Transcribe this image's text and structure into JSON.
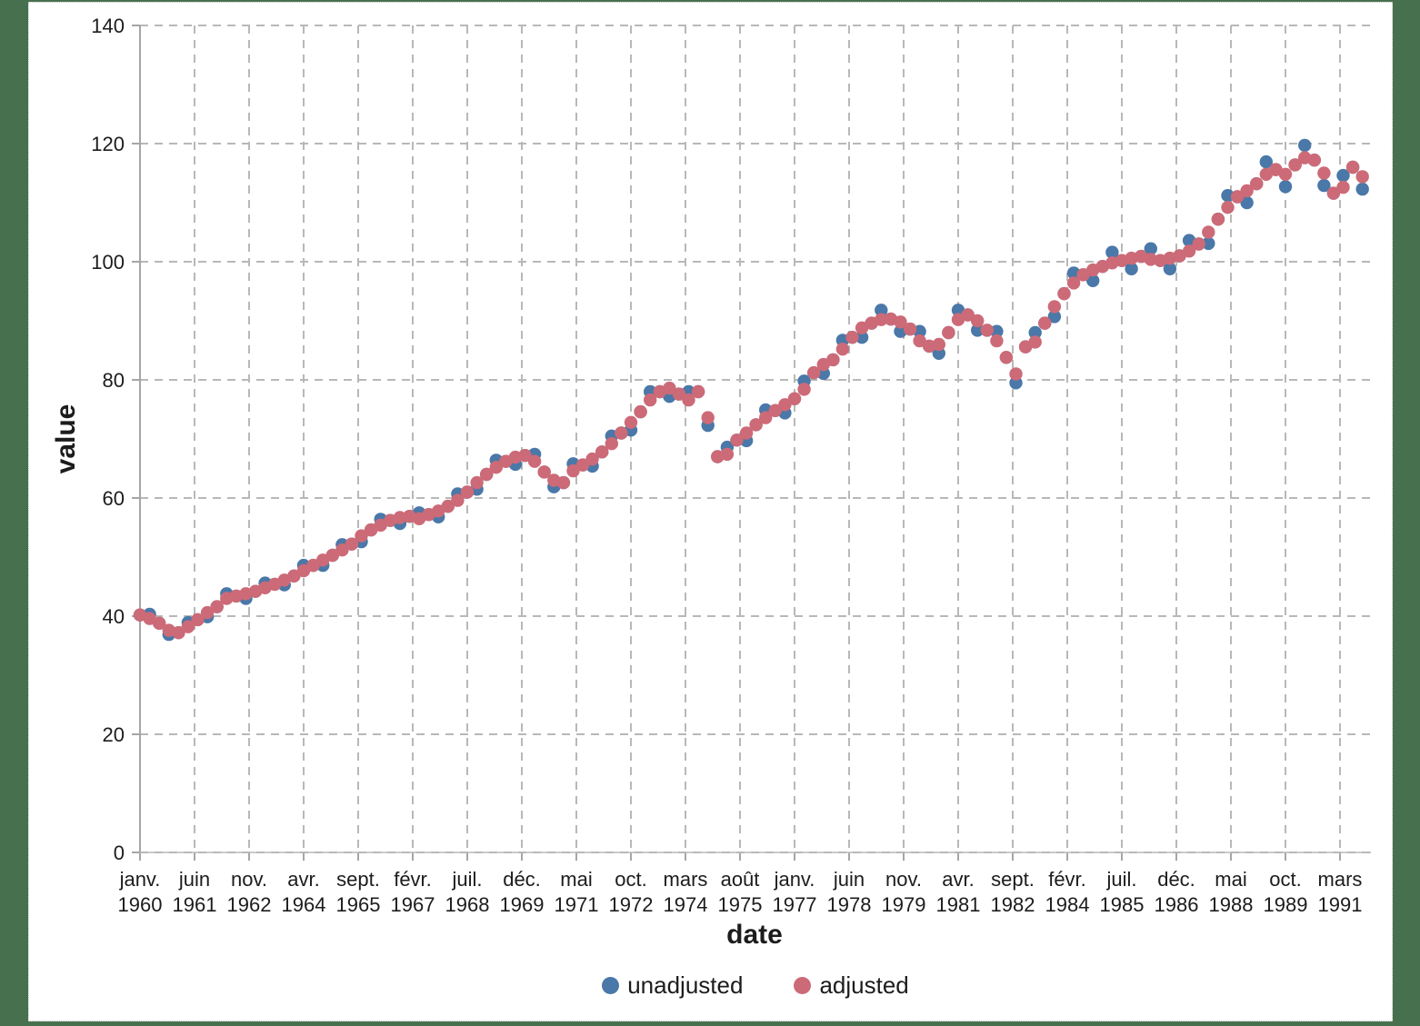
{
  "page": {
    "background_color": "#47714e",
    "card_background": "#ffffff",
    "card_border_color": "#c4c4c4"
  },
  "chart_data": {
    "type": "scatter",
    "title": "",
    "xlabel": "date",
    "ylabel": "value",
    "ylim": [
      0,
      140
    ],
    "y_ticks": [
      0,
      20,
      40,
      60,
      80,
      100,
      120,
      140
    ],
    "grid": "dashed gray, both directions",
    "legend_position": "bottom center",
    "x_start": "janv. 1960",
    "x_end": "oct. 1991",
    "x_unit": "months since janv. 1960",
    "x_step_months": 3,
    "x_tick_months": [
      0,
      17,
      34,
      51,
      68,
      85,
      102,
      119,
      136,
      153,
      170,
      187,
      204,
      221,
      238,
      255,
      272,
      289,
      306,
      323,
      340,
      357,
      374
    ],
    "x_tick_labels": [
      {
        "month": "janv.",
        "year": "1960"
      },
      {
        "month": "juin",
        "year": "1961"
      },
      {
        "month": "nov.",
        "year": "1962"
      },
      {
        "month": "avr.",
        "year": "1964"
      },
      {
        "month": "sept.",
        "year": "1965"
      },
      {
        "month": "févr.",
        "year": "1967"
      },
      {
        "month": "juil.",
        "year": "1968"
      },
      {
        "month": "déc.",
        "year": "1969"
      },
      {
        "month": "mai",
        "year": "1971"
      },
      {
        "month": "oct.",
        "year": "1972"
      },
      {
        "month": "mars",
        "year": "1974"
      },
      {
        "month": "août",
        "year": "1975"
      },
      {
        "month": "janv.",
        "year": "1977"
      },
      {
        "month": "juin",
        "year": "1978"
      },
      {
        "month": "nov.",
        "year": "1979"
      },
      {
        "month": "avr.",
        "year": "1981"
      },
      {
        "month": "sept.",
        "year": "1982"
      },
      {
        "month": "févr.",
        "year": "1984"
      },
      {
        "month": "juil.",
        "year": "1985"
      },
      {
        "month": "déc.",
        "year": "1986"
      },
      {
        "month": "mai",
        "year": "1988"
      },
      {
        "month": "oct.",
        "year": "1989"
      },
      {
        "month": "mars",
        "year": "1991"
      }
    ],
    "series": [
      {
        "name": "unadjusted",
        "color": "#4a78a8",
        "marker": "circle",
        "values": [
          40.2,
          40.3,
          38.8,
          36.9,
          37.2,
          38.9,
          39.4,
          39.9,
          41.6,
          43.8,
          43.4,
          43.0,
          44.2,
          45.6,
          45.4,
          45.3,
          46.8,
          48.6,
          48.6,
          48.6,
          50.3,
          52.1,
          52.2,
          52.6,
          54.6,
          56.4,
          56.2,
          55.7,
          56.9,
          57.5,
          57.2,
          56.8,
          58.6,
          60.7,
          61.0,
          61.5,
          64.0,
          66.4,
          66.2,
          65.7,
          67.2,
          67.4,
          64.4,
          61.9,
          62.6,
          65.8,
          65.6,
          65.4,
          67.8,
          70.5,
          71.0,
          71.5,
          74.6,
          78.0,
          78.0,
          77.2,
          77.6,
          78.0,
          78.0,
          72.3,
          67.0,
          68.6,
          69.8,
          69.7,
          72.4,
          74.9,
          74.8,
          74.4,
          76.8,
          79.8,
          81.2,
          81.1,
          83.4,
          86.7,
          87.2,
          87.2,
          89.6,
          91.8,
          90.3,
          88.2,
          88.6,
          88.2,
          85.7,
          84.5,
          88.0,
          91.8,
          91.0,
          88.4,
          88.4,
          88.2,
          83.8,
          79.5,
          85.6,
          88.0,
          89.6,
          90.7,
          94.6,
          98.1,
          97.8,
          96.8,
          99.2,
          101.6,
          100.2,
          98.8,
          100.9,
          102.2,
          100.2,
          98.8,
          101.0,
          103.6,
          103.0,
          103.1,
          107.2,
          111.2,
          111.0,
          110.0,
          113.2,
          116.9,
          115.6,
          112.7,
          116.4,
          119.7,
          117.2,
          112.9,
          111.6,
          114.6,
          116.0,
          112.3
        ]
      },
      {
        "name": "adjusted",
        "color": "#cd6a77",
        "marker": "circle",
        "values": [
          40.2,
          39.6,
          38.8,
          37.6,
          37.2,
          38.2,
          39.4,
          40.6,
          41.6,
          43.0,
          43.4,
          43.8,
          44.2,
          44.8,
          45.4,
          46.1,
          46.8,
          47.7,
          48.6,
          49.5,
          50.3,
          51.2,
          52.2,
          53.6,
          54.6,
          55.4,
          56.2,
          56.7,
          56.9,
          56.5,
          57.2,
          57.8,
          58.6,
          59.6,
          61.0,
          62.6,
          64.0,
          65.2,
          66.2,
          66.9,
          67.2,
          66.2,
          64.4,
          63.0,
          62.6,
          64.6,
          65.6,
          66.6,
          67.8,
          69.2,
          71.0,
          72.8,
          74.6,
          76.6,
          78.0,
          78.6,
          77.6,
          76.6,
          78.0,
          73.6,
          67.0,
          67.4,
          69.8,
          71.0,
          72.4,
          73.6,
          74.8,
          75.8,
          76.8,
          78.4,
          81.2,
          82.6,
          83.4,
          85.2,
          87.2,
          88.8,
          89.6,
          90.2,
          90.3,
          89.8,
          88.6,
          86.6,
          85.7,
          86.0,
          88.0,
          90.2,
          91.0,
          90.0,
          88.4,
          86.6,
          83.8,
          81.0,
          85.6,
          86.4,
          89.6,
          92.4,
          94.6,
          96.4,
          97.8,
          98.6,
          99.2,
          99.8,
          100.2,
          100.6,
          100.9,
          100.4,
          100.2,
          100.6,
          101.0,
          101.8,
          103.0,
          105.0,
          107.2,
          109.2,
          111.0,
          112.0,
          113.2,
          114.8,
          115.6,
          114.8,
          116.4,
          117.6,
          117.2,
          115.0,
          111.6,
          112.6,
          116.0,
          114.4
        ]
      }
    ]
  },
  "legend": {
    "items": [
      {
        "label": "unadjusted",
        "color": "#4a78a8"
      },
      {
        "label": "adjusted",
        "color": "#cd6a77"
      }
    ]
  },
  "style": {
    "grid_color": "#b8b8b8",
    "axis_color": "#a6a6a6",
    "text_color": "#1c1c1c"
  }
}
